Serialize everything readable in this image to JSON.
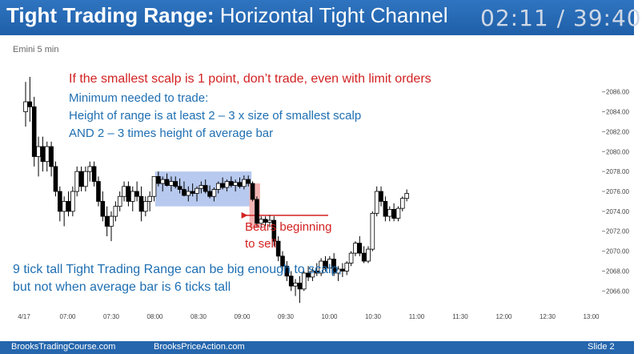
{
  "slide": {
    "title_bold": "Tight Trading Range:",
    "title_rest": " Horizontal Tight Channel",
    "timer": "02:11 / 39:40",
    "chart_label": "Emini 5 min",
    "footer_left": "BrooksTradingCourse.com",
    "footer_mid": "BrooksPriceAction.com",
    "footer_right": "Slide  2"
  },
  "annotations": {
    "warning": "If the smallest scalp is 1 point, don’t trade, even with limit orders",
    "min_line1": "Minimum needed to trade:",
    "min_line2": "Height of range is at least 2 – 3 x size of smallest scalp",
    "min_line3": "AND 2 – 3 times height of average bar",
    "bears_line1": "Bears beginning",
    "bears_line2": "to sell",
    "tick_line1": "9 tick tall Tight Trading Range can be big enough to scalp,",
    "tick_line2": "but not when average bar is 6 ticks tall"
  },
  "colors": {
    "header": "#1f5fa8",
    "accent_red": "#d22222",
    "accent_blue": "#1f6fb2",
    "range_box": "#b7c9ee",
    "sell_box": "#f4b4b4",
    "bull_body": "#ffffff",
    "bear_body": "#000000"
  },
  "chart_data": {
    "type": "candlestick",
    "x_ticks": [
      "4/17",
      "07:00",
      "07:30",
      "08:00",
      "08:30",
      "09:00",
      "09:30",
      "10:00",
      "10:30",
      "11:00",
      "11:30",
      "12:00",
      "12:30",
      "13:00"
    ],
    "y_ticks": [
      "2086.00",
      "2084.00",
      "2082.00",
      "2080.00",
      "2078.00",
      "2076.00",
      "2074.00",
      "2072.00",
      "2070.00",
      "2068.00",
      "2066.00"
    ],
    "ylim": [
      2064.5,
      2087.5
    ],
    "bars": [
      [
        2084.0,
        2087.0,
        2082.5,
        2085.0
      ],
      [
        2085.0,
        2087.5,
        2083.0,
        2084.5
      ],
      [
        2084.5,
        2085.5,
        2078.5,
        2079.5
      ],
      [
        2079.5,
        2081.5,
        2077.5,
        2080.5
      ],
      [
        2080.5,
        2081.5,
        2078.0,
        2079.0
      ],
      [
        2079.0,
        2081.0,
        2078.0,
        2080.5
      ],
      [
        2080.5,
        2081.0,
        2077.5,
        2078.5
      ],
      [
        2078.5,
        2079.0,
        2075.5,
        2076.0
      ],
      [
        2076.0,
        2076.5,
        2073.0,
        2074.0
      ],
      [
        2074.0,
        2075.5,
        2072.5,
        2075.0
      ],
      [
        2075.0,
        2076.0,
        2073.5,
        2074.0
      ],
      [
        2074.0,
        2076.5,
        2073.5,
        2076.0
      ],
      [
        2076.0,
        2078.5,
        2075.5,
        2078.0
      ],
      [
        2078.0,
        2078.5,
        2076.0,
        2076.5
      ],
      [
        2076.5,
        2078.5,
        2076.0,
        2078.0
      ],
      [
        2078.0,
        2079.0,
        2077.0,
        2078.5
      ],
      [
        2078.5,
        2079.0,
        2076.5,
        2077.0
      ],
      [
        2077.0,
        2077.5,
        2074.5,
        2075.0
      ],
      [
        2075.0,
        2076.0,
        2073.0,
        2073.5
      ],
      [
        2073.5,
        2074.5,
        2071.5,
        2072.5
      ],
      [
        2072.5,
        2074.0,
        2071.0,
        2073.5
      ],
      [
        2073.5,
        2075.0,
        2073.0,
        2074.5
      ],
      [
        2074.5,
        2076.0,
        2074.0,
        2075.5
      ],
      [
        2075.5,
        2077.0,
        2075.0,
        2076.5
      ],
      [
        2076.5,
        2077.0,
        2074.5,
        2075.0
      ],
      [
        2075.0,
        2076.5,
        2074.0,
        2076.0
      ],
      [
        2076.0,
        2077.0,
        2075.0,
        2075.5
      ],
      [
        2075.5,
        2076.5,
        2073.0,
        2074.0
      ],
      [
        2074.0,
        2075.5,
        2073.5,
        2075.0
      ],
      [
        2075.0,
        2076.0,
        2074.0,
        2075.5
      ],
      [
        2075.5,
        2077.5,
        2075.0,
        2077.5
      ],
      [
        2077.5,
        2078.0,
        2076.5,
        2076.8
      ],
      [
        2076.8,
        2077.5,
        2076.0,
        2077.2
      ],
      [
        2077.2,
        2077.8,
        2076.5,
        2076.6
      ],
      [
        2076.6,
        2077.5,
        2076.0,
        2077.0
      ],
      [
        2077.0,
        2077.5,
        2076.3,
        2076.5
      ],
      [
        2076.5,
        2077.3,
        2075.8,
        2076.2
      ],
      [
        2076.2,
        2077.0,
        2075.5,
        2075.6
      ],
      [
        2075.6,
        2076.5,
        2075.0,
        2076.0
      ],
      [
        2076.0,
        2076.8,
        2075.5,
        2075.8
      ],
      [
        2075.8,
        2076.5,
        2075.0,
        2076.3
      ],
      [
        2076.3,
        2077.0,
        2075.8,
        2076.6
      ],
      [
        2076.6,
        2077.2,
        2075.8,
        2076.0
      ],
      [
        2076.0,
        2076.6,
        2075.3,
        2075.5
      ],
      [
        2075.5,
        2076.4,
        2075.0,
        2076.2
      ],
      [
        2076.2,
        2077.0,
        2075.8,
        2076.8
      ],
      [
        2076.8,
        2077.4,
        2076.2,
        2076.4
      ],
      [
        2076.4,
        2077.2,
        2076.0,
        2077.0
      ],
      [
        2077.0,
        2077.5,
        2076.4,
        2076.6
      ],
      [
        2076.6,
        2077.2,
        2076.0,
        2076.9
      ],
      [
        2076.9,
        2077.4,
        2076.3,
        2076.5
      ],
      [
        2076.5,
        2077.6,
        2076.2,
        2077.2
      ],
      [
        2077.2,
        2077.6,
        2076.5,
        2076.8
      ],
      [
        2076.8,
        2077.0,
        2075.0,
        2075.2
      ],
      [
        2075.2,
        2075.5,
        2072.5,
        2072.8
      ],
      [
        2072.8,
        2073.5,
        2072.3,
        2073.2
      ],
      [
        2073.2,
        2073.5,
        2072.5,
        2072.9
      ],
      [
        2072.9,
        2073.6,
        2072.4,
        2073.1
      ],
      [
        2073.1,
        2073.5,
        2070.5,
        2071.0
      ],
      [
        2071.0,
        2071.5,
        2069.0,
        2069.5
      ],
      [
        2069.5,
        2070.0,
        2068.0,
        2068.5
      ],
      [
        2068.5,
        2069.0,
        2067.0,
        2067.5
      ],
      [
        2067.5,
        2068.0,
        2066.0,
        2066.5
      ],
      [
        2066.5,
        2067.2,
        2065.5,
        2066.8
      ],
      [
        2066.8,
        2067.5,
        2064.8,
        2066.2
      ],
      [
        2066.2,
        2068.0,
        2066.0,
        2067.8
      ],
      [
        2067.8,
        2068.5,
        2067.0,
        2067.4
      ],
      [
        2067.4,
        2068.3,
        2067.0,
        2068.0
      ],
      [
        2068.0,
        2068.8,
        2067.5,
        2067.8
      ],
      [
        2067.8,
        2069.3,
        2067.5,
        2069.0
      ],
      [
        2069.0,
        2069.5,
        2068.0,
        2068.3
      ],
      [
        2068.3,
        2069.5,
        2067.8,
        2069.2
      ],
      [
        2069.2,
        2069.8,
        2067.5,
        2067.8
      ],
      [
        2067.8,
        2068.5,
        2067.0,
        2068.2
      ],
      [
        2068.2,
        2068.8,
        2067.4,
        2068.0
      ],
      [
        2068.0,
        2069.0,
        2067.6,
        2068.8
      ],
      [
        2068.8,
        2070.0,
        2068.5,
        2069.8
      ],
      [
        2069.8,
        2071.0,
        2069.5,
        2070.8
      ],
      [
        2070.8,
        2071.5,
        2069.5,
        2069.8
      ],
      [
        2069.8,
        2070.5,
        2068.8,
        2069.0
      ],
      [
        2069.0,
        2070.5,
        2068.8,
        2070.2
      ],
      [
        2070.2,
        2074.0,
        2070.0,
        2073.8
      ],
      [
        2073.8,
        2076.5,
        2073.5,
        2076.0
      ],
      [
        2076.0,
        2076.5,
        2074.5,
        2075.0
      ],
      [
        2075.0,
        2075.5,
        2073.0,
        2073.5
      ],
      [
        2073.5,
        2074.5,
        2073.0,
        2074.2
      ],
      [
        2074.2,
        2074.8,
        2073.0,
        2073.3
      ],
      [
        2073.3,
        2074.5,
        2073.0,
        2074.3
      ],
      [
        2074.3,
        2075.5,
        2074.0,
        2075.3
      ],
      [
        2075.3,
        2076.2,
        2075.0,
        2075.8
      ]
    ],
    "range_box": {
      "from_bar": 31,
      "to_bar": 52,
      "low": 2074.5,
      "high": 2078.0
    },
    "sell_box": {
      "from_bar": 53,
      "to_bar": 54,
      "low": 2072.3,
      "high": 2076.8
    }
  }
}
